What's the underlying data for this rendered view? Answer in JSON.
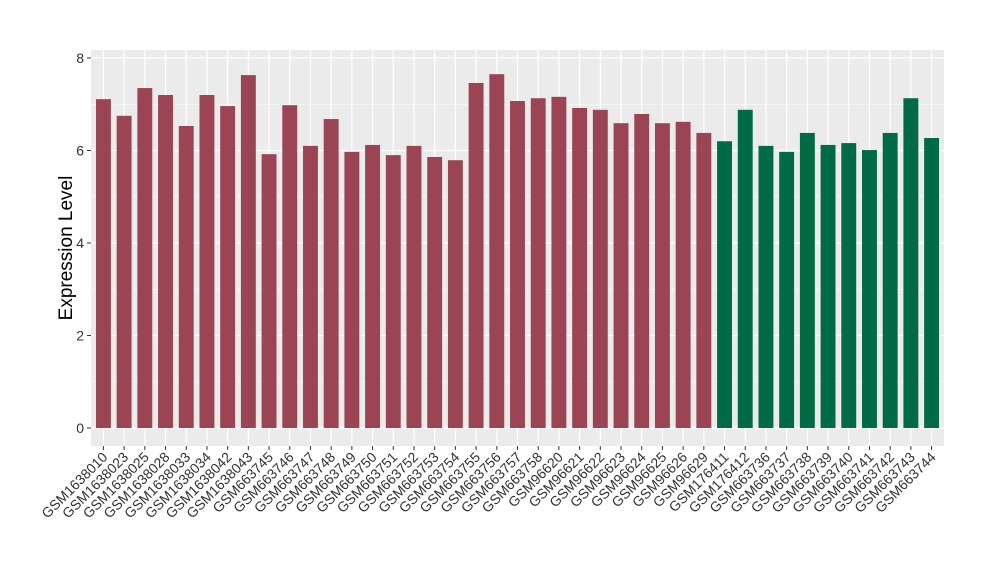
{
  "chart_data": {
    "type": "bar",
    "title": "",
    "xlabel": "",
    "ylabel": "Expression Level",
    "ylim": [
      0,
      8
    ],
    "yticks": [
      0,
      2,
      4,
      6,
      8
    ],
    "grid": true,
    "colors": {
      "group1": "#9b4453",
      "group2": "#006b45",
      "panel": "#ebebeb",
      "grid": "#ffffff"
    },
    "categories": [
      "GSM1638010",
      "GSM1638023",
      "GSM1638025",
      "GSM1638028",
      "GSM1638033",
      "GSM1638034",
      "GSM1638042",
      "GSM1638043",
      "GSM663745",
      "GSM663746",
      "GSM663747",
      "GSM663748",
      "GSM663749",
      "GSM663750",
      "GSM663751",
      "GSM663752",
      "GSM663753",
      "GSM663754",
      "GSM663755",
      "GSM663756",
      "GSM663757",
      "GSM663758",
      "GSM96620",
      "GSM96621",
      "GSM96622",
      "GSM96623",
      "GSM96624",
      "GSM96625",
      "GSM96626",
      "GSM96629",
      "GSM176411",
      "GSM176412",
      "GSM663736",
      "GSM663737",
      "GSM663738",
      "GSM663739",
      "GSM663740",
      "GSM663741",
      "GSM663742",
      "GSM663743",
      "GSM663744"
    ],
    "values": [
      7.11,
      6.75,
      7.35,
      7.2,
      6.53,
      7.2,
      6.96,
      7.63,
      5.92,
      6.98,
      6.1,
      6.68,
      5.97,
      6.12,
      5.9,
      6.1,
      5.86,
      5.79,
      7.46,
      7.65,
      7.07,
      7.13,
      7.16,
      6.92,
      6.88,
      6.59,
      6.79,
      6.59,
      6.62,
      6.38,
      6.2,
      6.88,
      6.1,
      5.97,
      6.38,
      6.12,
      6.16,
      6.01,
      6.38,
      7.13,
      6.27
    ],
    "groups": [
      "group1",
      "group1",
      "group1",
      "group1",
      "group1",
      "group1",
      "group1",
      "group1",
      "group1",
      "group1",
      "group1",
      "group1",
      "group1",
      "group1",
      "group1",
      "group1",
      "group1",
      "group1",
      "group1",
      "group1",
      "group1",
      "group1",
      "group1",
      "group1",
      "group1",
      "group1",
      "group1",
      "group1",
      "group1",
      "group1",
      "group2",
      "group2",
      "group2",
      "group2",
      "group2",
      "group2",
      "group2",
      "group2",
      "group2",
      "group2",
      "group2"
    ]
  }
}
